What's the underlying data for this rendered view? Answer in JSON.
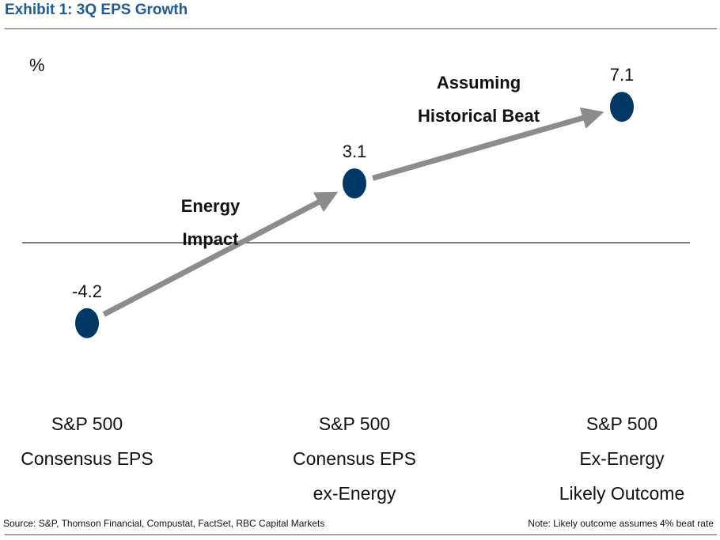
{
  "title": "Exhibit 1: 3Q EPS Growth",
  "chart_data": {
    "type": "scatter",
    "ylabel": "%",
    "categories": [
      [
        "S&P 500",
        "Consensus EPS"
      ],
      [
        "S&P 500",
        "Conensus EPS",
        "ex-Energy"
      ],
      [
        "S&P 500",
        "Ex-Energy",
        "Likely Outcome"
      ]
    ],
    "values": [
      -4.2,
      3.1,
      7.1
    ],
    "value_labels": [
      "-4.2",
      "3.1",
      "7.1"
    ],
    "annotations": [
      {
        "lines": [
          "Energy",
          "Impact"
        ],
        "from": 0,
        "to": 1
      },
      {
        "lines": [
          "Assuming",
          "Historical Beat"
        ],
        "from": 1,
        "to": 2
      }
    ],
    "zero_line": true,
    "ylim": [
      -9,
      10.2
    ],
    "marker_color": "#003865",
    "arrow_color": "#8c8c8c"
  },
  "footer": {
    "source": "Source: S&P, Thomson Financial, Compustat, FactSet, RBC Capital Markets",
    "note": "Note: Likely outcome assumes 4% beat rate"
  }
}
